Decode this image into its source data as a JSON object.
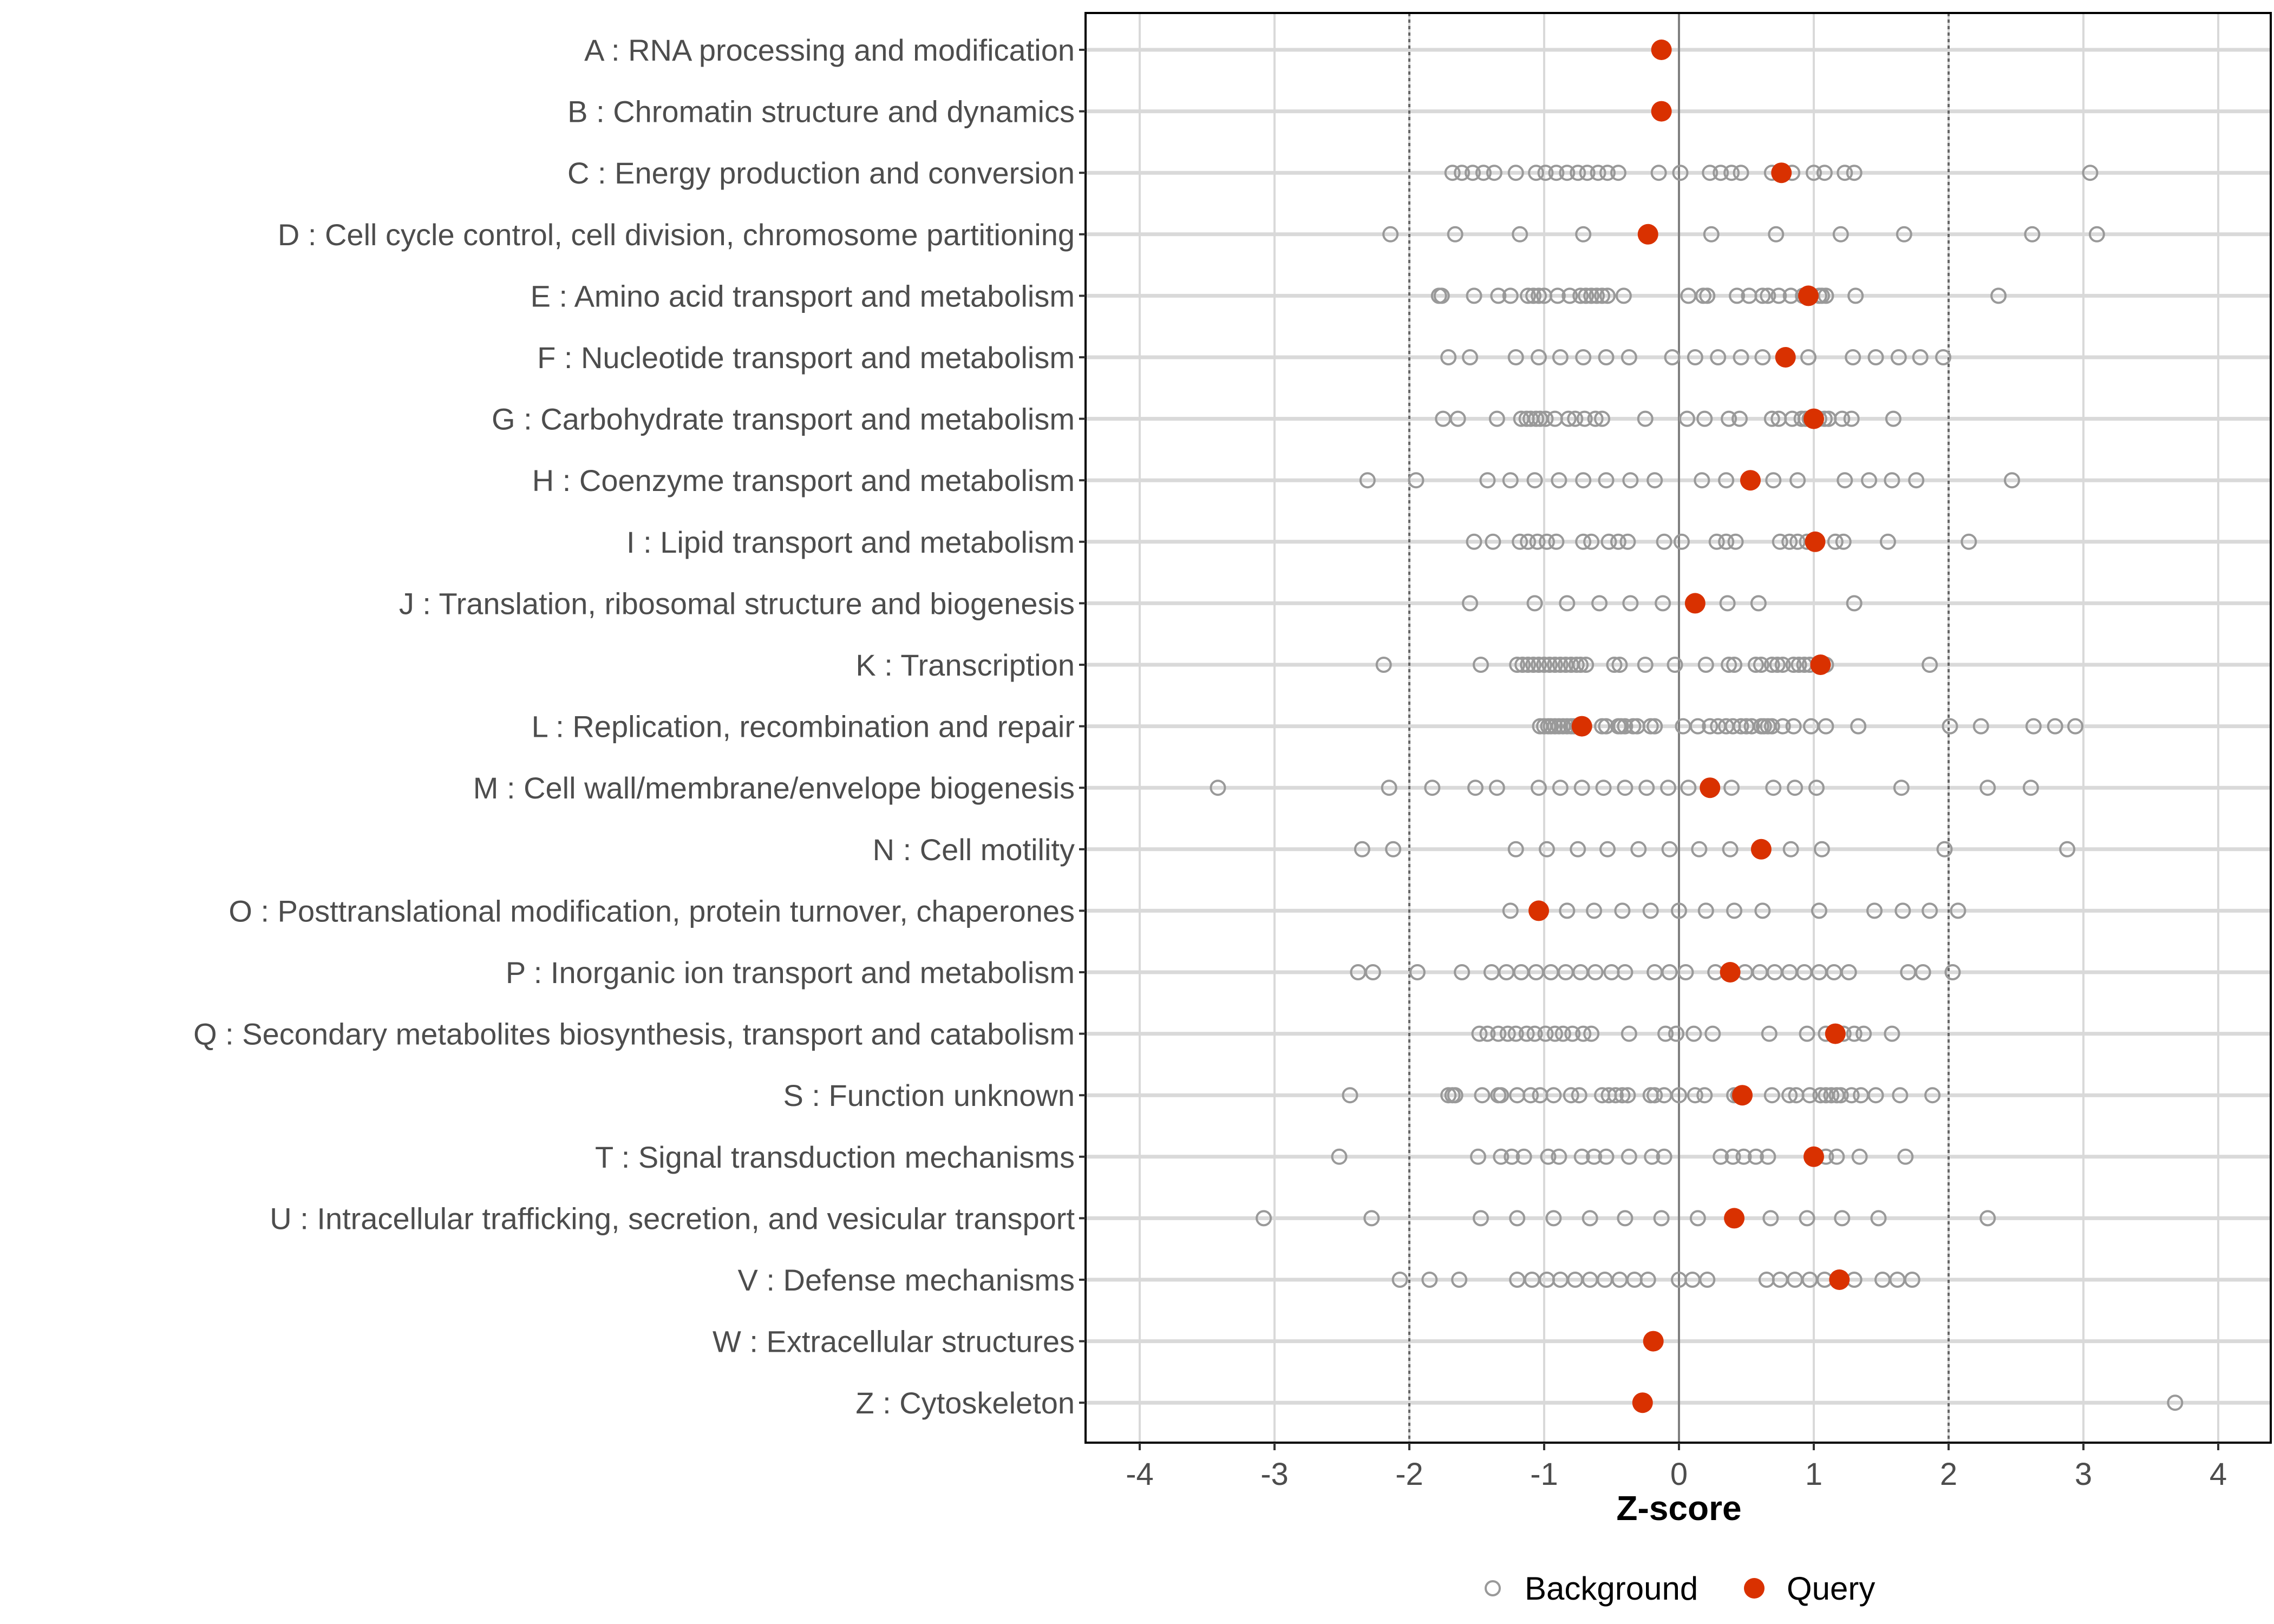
{
  "chart_data": {
    "type": "scatter",
    "title": "",
    "xlabel": "Z-score",
    "ylabel": "",
    "xlim": [
      -4.4,
      4.4
    ],
    "xticks": [
      -4,
      -3,
      -2,
      -1,
      0,
      1,
      2,
      3,
      4
    ],
    "xtick_labels": [
      "-4",
      "-3",
      "-2",
      "-1",
      "0",
      "1",
      "2",
      "3",
      "4"
    ],
    "reference_lines": {
      "dashed": [
        -2,
        2
      ],
      "solid": [
        0
      ]
    },
    "grid": true,
    "legend": {
      "placement": "bottom",
      "entries": [
        "Background",
        "Query"
      ]
    },
    "colors": {
      "background": "#999999",
      "query": "#d93100",
      "grid": "#d9d9d9",
      "zero": "#808080",
      "dashed": "#666666",
      "label": "#4d4d4d"
    },
    "categories": [
      "A : RNA processing and modification",
      "B : Chromatin structure and dynamics",
      "C : Energy production and conversion",
      "D : Cell cycle control, cell division, chromosome partitioning",
      "E : Amino acid transport and metabolism",
      "F : Nucleotide transport and metabolism",
      "G : Carbohydrate transport and metabolism",
      "H : Coenzyme transport and metabolism",
      "I : Lipid transport and metabolism",
      "J : Translation, ribosomal structure and biogenesis",
      "K : Transcription",
      "L : Replication, recombination and repair",
      "M : Cell wall/membrane/envelope biogenesis",
      "N : Cell motility",
      "O : Posttranslational modification, protein turnover, chaperones",
      "P : Inorganic ion transport and metabolism",
      "Q : Secondary metabolites biosynthesis, transport and catabolism",
      "S : Function unknown",
      "T : Signal transduction mechanisms",
      "U : Intracellular trafficking, secretion, and vesicular transport",
      "V : Defense mechanisms",
      "W : Extracellular structures",
      "Z : Cytoskeleton"
    ],
    "series": [
      {
        "name": "Query",
        "values": [
          -0.13,
          -0.13,
          0.76,
          -0.23,
          0.96,
          0.79,
          1.0,
          0.53,
          1.01,
          0.12,
          1.05,
          -0.72,
          0.23,
          0.61,
          -1.04,
          0.38,
          1.16,
          0.47,
          1.0,
          0.41,
          1.19,
          -0.19,
          -0.27
        ]
      },
      {
        "name": "Background",
        "values": [
          [],
          [],
          [
            -1.68,
            -1.61,
            -1.53,
            -1.45,
            -1.37,
            -1.21,
            -1.06,
            -0.99,
            -0.91,
            -0.83,
            -0.75,
            -0.68,
            -0.6,
            -0.53,
            -0.45,
            -0.15,
            0.01,
            0.23,
            0.31,
            0.39,
            0.46,
            0.69,
            0.84,
            1.0,
            1.08,
            1.23,
            1.3,
            3.05
          ],
          [
            -2.14,
            -1.66,
            -1.18,
            -0.71,
            0.24,
            0.72,
            1.2,
            1.67,
            2.62,
            3.1
          ],
          [
            -1.78,
            -1.76,
            -1.52,
            -1.34,
            -1.25,
            -1.12,
            -1.08,
            -1.04,
            -1.0,
            -0.9,
            -0.81,
            -0.73,
            -0.69,
            -0.65,
            -0.61,
            -0.57,
            -0.53,
            -0.41,
            0.07,
            0.18,
            0.21,
            0.43,
            0.52,
            0.62,
            0.66,
            0.74,
            0.83,
            0.92,
            1.04,
            1.06,
            1.09,
            1.31,
            2.37
          ],
          [
            -1.71,
            -1.55,
            -1.21,
            -1.04,
            -0.88,
            -0.71,
            -0.54,
            -0.37,
            -0.05,
            0.12,
            0.29,
            0.46,
            0.62,
            0.96,
            1.29,
            1.46,
            1.63,
            1.79,
            1.96
          ],
          [
            -1.75,
            -1.64,
            -1.35,
            -1.17,
            -1.13,
            -1.1,
            -1.06,
            -1.03,
            -0.99,
            -0.92,
            -0.82,
            -0.77,
            -0.7,
            -0.62,
            -0.57,
            -0.25,
            0.06,
            0.19,
            0.37,
            0.45,
            0.69,
            0.74,
            0.84,
            0.91,
            0.94,
            0.97,
            1.04,
            1.08,
            1.11,
            1.21,
            1.28,
            1.59
          ],
          [
            -2.31,
            -1.95,
            -1.42,
            -1.25,
            -1.07,
            -0.89,
            -0.71,
            -0.54,
            -0.36,
            -0.18,
            0.17,
            0.35,
            0.7,
            0.88,
            1.23,
            1.41,
            1.58,
            1.76,
            2.47
          ],
          [
            -1.52,
            -1.38,
            -1.18,
            -1.12,
            -1.05,
            -0.98,
            -0.91,
            -0.71,
            -0.65,
            -0.52,
            -0.45,
            -0.38,
            -0.11,
            0.02,
            0.28,
            0.35,
            0.42,
            0.75,
            0.82,
            0.88,
            0.95,
            1.16,
            1.22,
            1.55,
            2.15
          ],
          [
            -1.55,
            -1.07,
            -0.83,
            -0.59,
            -0.36,
            -0.12,
            0.36,
            0.59,
            1.3
          ],
          [
            -2.19,
            -1.47,
            -1.2,
            -1.16,
            -1.12,
            -1.08,
            -1.04,
            -1.0,
            -0.96,
            -0.92,
            -0.88,
            -0.84,
            -0.8,
            -0.76,
            -0.73,
            -0.69,
            -0.48,
            -0.44,
            -0.25,
            -0.03,
            0.2,
            0.37,
            0.41,
            0.57,
            0.61,
            0.69,
            0.73,
            0.77,
            0.85,
            0.89,
            0.93,
            0.97,
            1.09,
            1.86
          ],
          [
            -1.03,
            -1.0,
            -0.97,
            -0.95,
            -0.92,
            -0.89,
            -0.86,
            -0.83,
            -0.8,
            -0.78,
            -0.75,
            -0.57,
            -0.54,
            -0.45,
            -0.43,
            -0.4,
            -0.34,
            -0.31,
            -0.21,
            -0.18,
            0.03,
            0.14,
            0.23,
            0.29,
            0.35,
            0.4,
            0.46,
            0.5,
            0.54,
            0.61,
            0.63,
            0.66,
            0.69,
            0.77,
            0.85,
            0.98,
            1.09,
            1.33,
            2.01,
            2.24,
            2.63,
            2.79,
            2.94
          ],
          [
            -3.42,
            -2.15,
            -1.83,
            -1.51,
            -1.35,
            -1.04,
            -0.88,
            -0.72,
            -0.56,
            -0.4,
            -0.24,
            -0.08,
            0.07,
            0.39,
            0.7,
            0.86,
            1.02,
            1.65,
            2.29,
            2.61
          ],
          [
            -2.35,
            -2.12,
            -1.21,
            -0.98,
            -0.75,
            -0.53,
            -0.3,
            -0.07,
            0.15,
            0.38,
            0.83,
            1.06,
            1.97,
            2.88
          ],
          [
            -1.25,
            -0.83,
            -0.63,
            -0.42,
            -0.21,
            0.0,
            0.2,
            0.41,
            0.62,
            1.04,
            1.45,
            1.66,
            1.86,
            2.07
          ],
          [
            -2.38,
            -2.27,
            -1.94,
            -1.61,
            -1.39,
            -1.28,
            -1.17,
            -1.06,
            -0.95,
            -0.84,
            -0.73,
            -0.62,
            -0.5,
            -0.4,
            -0.18,
            -0.07,
            0.05,
            0.27,
            0.49,
            0.6,
            0.71,
            0.82,
            0.93,
            1.04,
            1.15,
            1.26,
            1.7,
            1.81,
            2.03
          ],
          [
            -1.48,
            -1.42,
            -1.34,
            -1.27,
            -1.21,
            -1.13,
            -1.07,
            -0.99,
            -0.92,
            -0.86,
            -0.79,
            -0.71,
            -0.65,
            -0.37,
            -0.1,
            -0.02,
            0.11,
            0.25,
            0.67,
            0.95,
            1.09,
            1.22,
            1.3,
            1.37,
            1.58
          ],
          [
            -2.44,
            -1.71,
            -1.68,
            -1.66,
            -1.46,
            -1.34,
            -1.32,
            -1.2,
            -1.1,
            -1.03,
            -0.93,
            -0.8,
            -0.74,
            -0.57,
            -0.52,
            -0.47,
            -0.42,
            -0.38,
            -0.21,
            -0.18,
            -0.11,
            0.0,
            0.12,
            0.19,
            0.41,
            0.44,
            0.69,
            0.82,
            0.87,
            0.97,
            1.05,
            1.09,
            1.13,
            1.17,
            1.2,
            1.28,
            1.35,
            1.46,
            1.64,
            1.88
          ],
          [
            -2.52,
            -1.49,
            -1.32,
            -1.24,
            -1.15,
            -0.97,
            -0.89,
            -0.72,
            -0.63,
            -0.54,
            -0.37,
            -0.2,
            -0.11,
            0.31,
            0.4,
            0.48,
            0.57,
            0.66,
            1.09,
            1.17,
            1.34,
            1.68
          ],
          [
            -3.08,
            -2.28,
            -1.47,
            -1.2,
            -0.93,
            -0.66,
            -0.4,
            -0.13,
            0.14,
            0.68,
            0.95,
            1.21,
            1.48,
            2.29
          ],
          [
            -2.07,
            -1.85,
            -1.63,
            -1.2,
            -1.09,
            -0.98,
            -0.88,
            -0.77,
            -0.66,
            -0.55,
            -0.44,
            -0.33,
            -0.23,
            0.0,
            0.1,
            0.21,
            0.65,
            0.75,
            0.86,
            0.97,
            1.08,
            1.3,
            1.51,
            1.62,
            1.73
          ],
          [],
          [
            3.68
          ]
        ]
      }
    ]
  }
}
